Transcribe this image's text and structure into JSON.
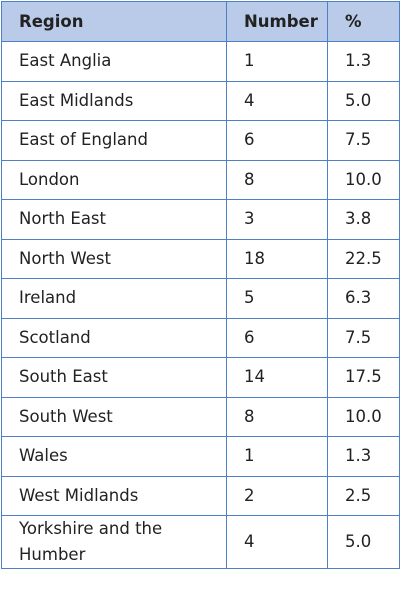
{
  "table": {
    "header": [
      "Region",
      "Number",
      "%"
    ],
    "rows": [
      [
        "East Anglia",
        "1",
        "1.3"
      ],
      [
        "East Midlands",
        "4",
        "5.0"
      ],
      [
        "East of England",
        "6",
        "7.5"
      ],
      [
        "London",
        "8",
        "10.0"
      ],
      [
        "North East",
        "3",
        "3.8"
      ],
      [
        "North West",
        "18",
        "22.5"
      ],
      [
        "Ireland",
        "5",
        "6.3"
      ],
      [
        "Scotland",
        "6",
        "7.5"
      ],
      [
        "South East",
        "14",
        "17.5"
      ],
      [
        "South West",
        "8",
        "10.0"
      ],
      [
        "Wales",
        "1",
        "1.3"
      ],
      [
        "West Midlands",
        "2",
        "2.5"
      ],
      [
        "Yorkshire and the Humber",
        "4",
        "5.0"
      ]
    ]
  }
}
